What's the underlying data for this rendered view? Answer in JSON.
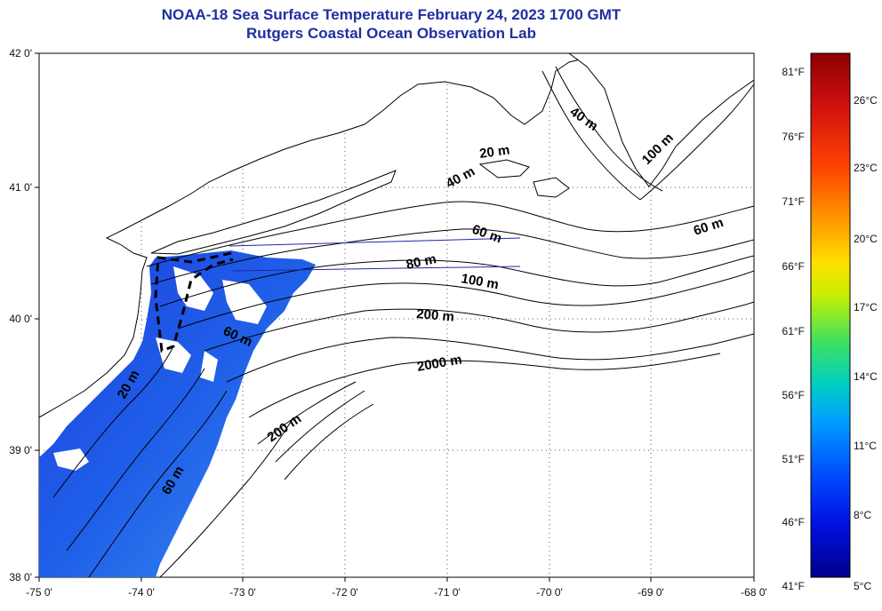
{
  "title": {
    "line1": "NOAA-18 Sea Surface Temperature February 24, 2023 1700 GMT",
    "line2": "Rutgers Coastal Ocean Observation Lab"
  },
  "map": {
    "lon_labels": [
      "-75 0'",
      "-74 0'",
      "-73 0'",
      "-72 0'",
      "-71 0'",
      "-70 0'",
      "-69 0'",
      "-68 0'"
    ],
    "lat_labels": [
      "42 0'",
      "41 0'",
      "40 0'",
      "39 0'",
      "38 0'"
    ],
    "contour_labels": [
      {
        "text": "20 m",
        "rotate": -8
      },
      {
        "text": "40 m",
        "rotate": -28
      },
      {
        "text": "40 m",
        "rotate": 35
      },
      {
        "text": "100 m",
        "rotate": -45
      },
      {
        "text": "60 m",
        "rotate": 20
      },
      {
        "text": "60 m",
        "rotate": -18
      },
      {
        "text": "80 m",
        "rotate": -12
      },
      {
        "text": "100 m",
        "rotate": 10
      },
      {
        "text": "200 m",
        "rotate": 5
      },
      {
        "text": "2000 m",
        "rotate": -10
      },
      {
        "text": "60 m",
        "rotate": 25
      },
      {
        "text": "20 m",
        "rotate": -60
      },
      {
        "text": "200 m",
        "rotate": -35
      },
      {
        "text": "60 m",
        "rotate": -60
      }
    ]
  },
  "colorbar": {
    "fahrenheit": [
      "81°F",
      "76°F",
      "71°F",
      "66°F",
      "61°F",
      "56°F",
      "51°F",
      "46°F",
      "41°F"
    ],
    "celsius": [
      "26°C",
      "23°C",
      "20°C",
      "17°C",
      "14°C",
      "11°C",
      "8°C",
      "5°C"
    ],
    "colors": [
      "#8b0000",
      "#d01010",
      "#ff4500",
      "#ff9a00",
      "#ffe000",
      "#c8f000",
      "#40e060",
      "#00d0c0",
      "#00a0ff",
      "#0050ff",
      "#0010e0",
      "#00008a"
    ]
  },
  "colors": {
    "title": "#1f2fa0",
    "sst_water": "#1a4ad8",
    "transect": "#1b2aa8"
  }
}
